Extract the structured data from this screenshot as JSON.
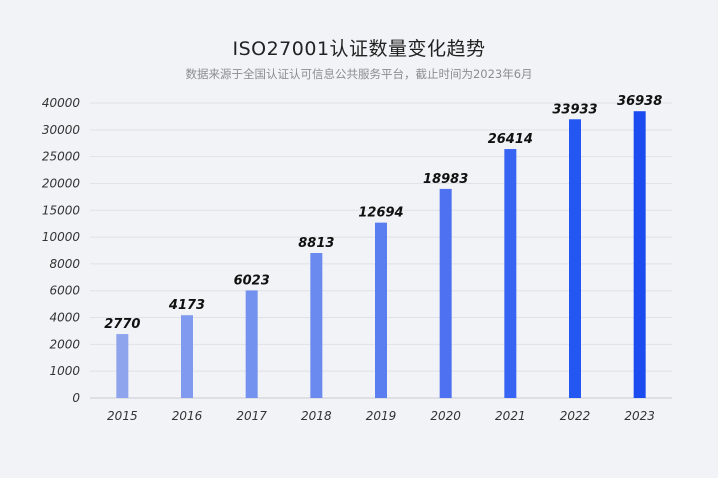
{
  "chart_data": {
    "type": "bar",
    "title": "ISO27001认证数量变化趋势",
    "subtitle": "数据来源于全国认证认可信息公共服务平台，截止时间为2023年6月",
    "categories": [
      "2015",
      "2016",
      "2017",
      "2018",
      "2019",
      "2020",
      "2021",
      "2022",
      "2023"
    ],
    "values": [
      2770,
      4173,
      6023,
      8813,
      12694,
      18983,
      26414,
      33933,
      36938
    ],
    "y_ticks": [
      0,
      1000,
      2000,
      4000,
      6000,
      8000,
      10000,
      15000,
      20000,
      25000,
      30000,
      40000
    ],
    "grid": true,
    "colors": [
      "#8ea5ee",
      "#7f9aee",
      "#7391ef",
      "#6a8aef",
      "#5a7ef0",
      "#4d71f1",
      "#3764f2",
      "#2457f2",
      "#1a4cf0"
    ]
  }
}
